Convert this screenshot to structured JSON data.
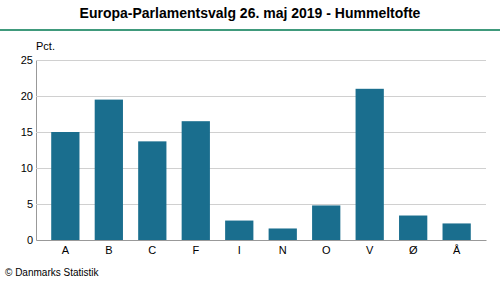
{
  "chart_data": {
    "type": "bar",
    "title": "Europa-Parlamentsvalg 26. maj 2019 - Hummeltofte",
    "categories": [
      "A",
      "B",
      "C",
      "F",
      "I",
      "N",
      "O",
      "V",
      "Ø",
      "Å"
    ],
    "values": [
      15.0,
      19.5,
      13.7,
      16.5,
      2.7,
      1.6,
      4.8,
      21.0,
      3.4,
      2.3
    ],
    "color": "#1a6e8e",
    "ylabel": "Pct.",
    "footer": "© Danmarks Statistik",
    "ylim": [
      0,
      25
    ],
    "yticks": [
      0,
      5,
      10,
      15,
      20,
      25
    ],
    "grid": true
  }
}
